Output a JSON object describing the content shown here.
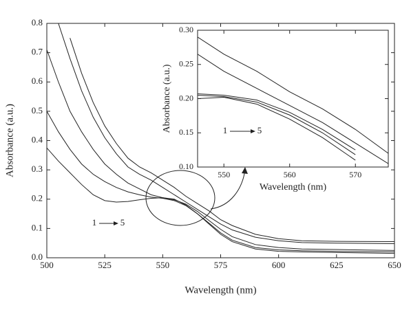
{
  "chart_data": [
    {
      "type": "line",
      "xlabel": "Wavelength (nm)",
      "ylabel": "Absorbance (a.u.)",
      "annotation_start": "1",
      "annotation_end": "5",
      "x": [
        500,
        505,
        510,
        515,
        520,
        525,
        530,
        535,
        540,
        545,
        550,
        555,
        560,
        565,
        570,
        575,
        580,
        590,
        600,
        610,
        625,
        650
      ],
      "series": [
        {
          "color": "#222",
          "values": [
            0.375,
            0.33,
            0.29,
            0.25,
            0.215,
            0.195,
            0.19,
            0.192,
            0.198,
            0.203,
            0.205,
            0.2,
            0.18,
            0.15,
            0.115,
            0.08,
            0.055,
            0.03,
            0.022,
            0.02,
            0.018,
            0.015
          ]
        },
        {
          "color": "#222",
          "values": [
            0.5,
            0.43,
            0.37,
            0.32,
            0.285,
            0.26,
            0.24,
            0.225,
            0.215,
            0.207,
            0.203,
            0.195,
            0.178,
            0.15,
            0.118,
            0.085,
            0.06,
            0.035,
            0.027,
            0.024,
            0.022,
            0.02
          ]
        },
        {
          "color": "#222",
          "values": [
            0.71,
            0.6,
            0.5,
            0.43,
            0.37,
            0.32,
            0.285,
            0.255,
            0.235,
            0.215,
            0.205,
            0.198,
            0.183,
            0.158,
            0.127,
            0.097,
            0.072,
            0.045,
            0.035,
            0.03,
            0.028,
            0.025
          ]
        },
        {
          "color": "#222",
          "values": [
            null,
            0.8,
            0.68,
            0.57,
            0.48,
            0.41,
            0.355,
            0.31,
            0.285,
            0.265,
            0.24,
            0.215,
            0.19,
            0.165,
            0.14,
            0.115,
            0.095,
            0.07,
            0.058,
            0.052,
            0.05,
            0.048
          ]
        },
        {
          "color": "#222",
          "values": [
            null,
            null,
            0.75,
            0.63,
            0.53,
            0.45,
            0.39,
            0.34,
            0.31,
            0.29,
            0.265,
            0.24,
            0.21,
            0.185,
            0.16,
            0.13,
            0.11,
            0.08,
            0.065,
            0.058,
            0.056,
            0.055
          ]
        }
      ],
      "xlim": [
        500,
        650
      ],
      "xticks": [
        500,
        525,
        550,
        575,
        600,
        625,
        650
      ],
      "ylim": [
        0,
        0.8
      ],
      "yticks": [
        {
          "value": 0,
          "label": "0.0"
        },
        0.1,
        0.2,
        0.3,
        0.4,
        0.5,
        0.6,
        0.7,
        0.8
      ]
    },
    {
      "type": "line",
      "xlabel": "Wavelength (nm)",
      "ylabel": "Absorbance (a.u.)",
      "annotation_start": "1",
      "annotation_end": "5",
      "x": [
        546,
        550,
        555,
        560,
        565,
        570,
        575
      ],
      "series": [
        {
          "color": "#222",
          "values": [
            0.29,
            0.265,
            0.24,
            0.21,
            0.185,
            0.155,
            0.12
          ]
        },
        {
          "color": "#222",
          "values": [
            0.265,
            0.24,
            0.215,
            0.19,
            0.165,
            0.135,
            0.105
          ]
        },
        {
          "color": "#222",
          "values": [
            0.207,
            0.205,
            0.198,
            0.18,
            0.155,
            0.125,
            null
          ]
        },
        {
          "color": "#222",
          "values": [
            0.205,
            0.203,
            0.195,
            0.176,
            0.15,
            0.118,
            null
          ]
        },
        {
          "color": "#222",
          "values": [
            0.2,
            0.202,
            0.192,
            0.17,
            0.143,
            0.11,
            null
          ]
        }
      ],
      "xlim": [
        546,
        575
      ],
      "xticks": [
        550,
        560,
        570
      ],
      "ylim": [
        0.1,
        0.3
      ],
      "yticks": [
        {
          "value": 0.1,
          "label": "0.10"
        },
        0.15,
        {
          "value": 0.2,
          "label": "0.20"
        },
        0.25,
        {
          "value": 0.3,
          "label": "0.30"
        }
      ]
    }
  ]
}
